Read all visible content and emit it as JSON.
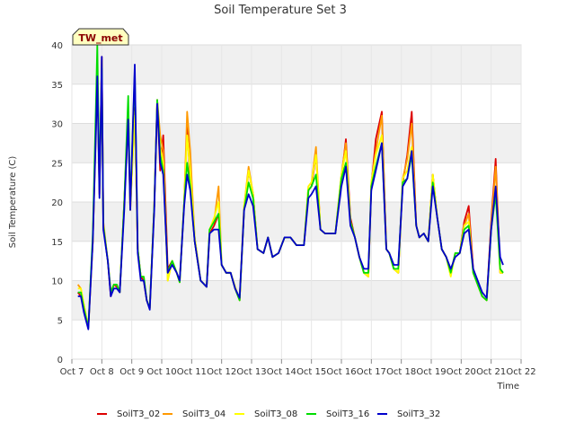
{
  "chart_data": {
    "type": "line",
    "title": "Soil Temperature Set 3",
    "xlabel": "Time",
    "ylabel": "Soil Temperature (C)",
    "badge": "TW_met",
    "ylim": [
      0,
      40
    ],
    "yticks": [
      0,
      5,
      10,
      15,
      20,
      25,
      30,
      35,
      40
    ],
    "xlim": [
      7,
      22
    ],
    "xticks": [
      {
        "v": 7,
        "label": "Oct 7"
      },
      {
        "v": 8,
        "label": "Oct 8"
      },
      {
        "v": 9,
        "label": "Oct 9"
      },
      {
        "v": 10,
        "label": "Oct 10"
      },
      {
        "v": 11,
        "label": "Oct 11"
      },
      {
        "v": 12,
        "label": "Oct 12"
      },
      {
        "v": 13,
        "label": "Oct 13"
      },
      {
        "v": 14,
        "label": "Oct 14"
      },
      {
        "v": 15,
        "label": "Oct 15"
      },
      {
        "v": 16,
        "label": "Oct 16"
      },
      {
        "v": 17,
        "label": "Oct 17"
      },
      {
        "v": 18,
        "label": "Oct 18"
      },
      {
        "v": 19,
        "label": "Oct 19"
      },
      {
        "v": 20,
        "label": "Oct 20"
      },
      {
        "v": 21,
        "label": "Oct 21"
      },
      {
        "v": 22,
        "label": "Oct 22"
      }
    ],
    "grid": true,
    "legend_position": "bottom",
    "x": [
      7.2,
      7.3,
      7.4,
      7.55,
      7.7,
      7.8,
      7.85,
      7.92,
      8.0,
      8.05,
      8.2,
      8.3,
      8.4,
      8.5,
      8.6,
      8.75,
      8.88,
      8.95,
      9.1,
      9.2,
      9.3,
      9.4,
      9.5,
      9.6,
      9.75,
      9.85,
      9.95,
      10.05,
      10.2,
      10.35,
      10.5,
      10.6,
      10.75,
      10.85,
      10.95,
      11.1,
      11.3,
      11.5,
      11.6,
      11.75,
      11.9,
      12.0,
      12.15,
      12.3,
      12.45,
      12.6,
      12.75,
      12.9,
      13.05,
      13.2,
      13.4,
      13.55,
      13.7,
      13.9,
      14.1,
      14.3,
      14.5,
      14.75,
      14.9,
      15.0,
      15.15,
      15.3,
      15.45,
      15.6,
      15.8,
      16.0,
      16.15,
      16.3,
      16.45,
      16.6,
      16.75,
      16.9,
      17.0,
      17.15,
      17.35,
      17.5,
      17.6,
      17.75,
      17.9,
      18.05,
      18.2,
      18.35,
      18.5,
      18.6,
      18.75,
      18.9,
      19.05,
      19.2,
      19.35,
      19.5,
      19.65,
      19.8,
      19.95,
      20.1,
      20.25,
      20.4,
      20.55,
      20.7,
      20.85,
      21.0,
      21.15,
      21.3,
      21.4
    ],
    "series": [
      {
        "name": "SoilT3_02",
        "color": "#dd0000",
        "values": [
          8.5,
          8.0,
          6.5,
          4.0,
          15.0,
          30.0,
          37.0,
          21.0,
          38.5,
          17.0,
          12.5,
          8.0,
          9.5,
          9.2,
          8.5,
          20.0,
          31.5,
          19.0,
          32.0,
          14.0,
          10.5,
          10.0,
          7.5,
          6.5,
          19.5,
          33.0,
          24.0,
          28.5,
          11.5,
          12.5,
          11.0,
          10.0,
          20.0,
          29.5,
          23.0,
          15.0,
          10.0,
          9.2,
          16.0,
          17.0,
          18.5,
          12.0,
          11.0,
          11.0,
          9.0,
          7.5,
          19.0,
          24.0,
          21.0,
          14.0,
          13.5,
          15.5,
          13.0,
          13.5,
          15.5,
          15.5,
          14.5,
          14.5,
          21.5,
          22.0,
          26.0,
          16.5,
          16.0,
          16.0,
          16.0,
          23.0,
          28.0,
          18.0,
          15.5,
          13.0,
          11.0,
          10.5,
          22.0,
          28.0,
          31.5,
          14.0,
          13.5,
          11.5,
          11.0,
          22.5,
          26.0,
          31.5,
          17.0,
          15.5,
          16.0,
          15.0,
          23.5,
          18.0,
          14.0,
          13.0,
          11.0,
          13.5,
          13.5,
          17.5,
          19.5,
          11.5,
          9.5,
          8.0,
          7.5,
          17.5,
          25.5,
          11.0,
          11.0
        ]
      },
      {
        "name": "SoilT3_04",
        "color": "#ff9900",
        "values": [
          9.5,
          9.0,
          7.0,
          4.0,
          15.0,
          29.0,
          36.5,
          22.0,
          38.0,
          17.5,
          12.5,
          8.5,
          9.5,
          9.5,
          8.5,
          20.0,
          31.0,
          19.5,
          31.5,
          14.0,
          10.5,
          10.5,
          7.5,
          6.5,
          19.5,
          33.0,
          28.5,
          26.5,
          10.0,
          12.5,
          11.0,
          9.8,
          20.0,
          31.5,
          26.5,
          15.5,
          10.0,
          9.2,
          16.5,
          17.5,
          22.0,
          12.0,
          11.0,
          11.0,
          9.2,
          7.5,
          19.5,
          24.5,
          21.0,
          14.0,
          13.5,
          15.5,
          13.0,
          13.5,
          15.5,
          15.5,
          14.5,
          14.5,
          22.0,
          22.5,
          27.0,
          16.5,
          16.0,
          16.0,
          16.0,
          23.5,
          27.5,
          17.5,
          15.5,
          13.0,
          11.0,
          10.5,
          22.5,
          26.5,
          31.0,
          14.0,
          13.5,
          11.5,
          11.0,
          23.0,
          25.5,
          30.0,
          17.0,
          15.5,
          16.0,
          15.0,
          23.5,
          18.0,
          14.0,
          13.0,
          10.8,
          13.5,
          13.5,
          17.0,
          18.5,
          11.0,
          9.5,
          8.0,
          7.5,
          17.0,
          24.5,
          11.5,
          11.0
        ]
      },
      {
        "name": "SoilT3_08",
        "color": "#ffff00",
        "values": [
          9.0,
          9.0,
          7.0,
          4.0,
          15.0,
          30.0,
          36.0,
          22.0,
          38.0,
          17.0,
          12.5,
          8.5,
          9.5,
          9.5,
          8.5,
          20.0,
          30.5,
          19.0,
          31.0,
          14.0,
          10.5,
          10.5,
          7.5,
          6.5,
          19.5,
          32.0,
          27.0,
          25.0,
          10.0,
          12.5,
          11.0,
          9.8,
          20.0,
          28.5,
          24.0,
          15.5,
          10.0,
          9.2,
          16.5,
          18.0,
          20.0,
          12.0,
          11.0,
          11.0,
          9.2,
          7.5,
          19.5,
          24.0,
          21.0,
          14.0,
          13.5,
          15.5,
          13.0,
          13.5,
          15.5,
          15.5,
          14.5,
          14.5,
          22.0,
          22.5,
          26.0,
          16.5,
          16.0,
          16.0,
          16.0,
          23.5,
          26.5,
          17.5,
          15.5,
          13.0,
          11.0,
          10.5,
          22.5,
          26.0,
          28.5,
          14.0,
          13.5,
          11.5,
          11.0,
          23.0,
          24.0,
          27.0,
          17.0,
          15.5,
          16.0,
          15.0,
          23.5,
          18.0,
          14.0,
          13.0,
          10.5,
          13.5,
          13.5,
          17.0,
          17.5,
          11.0,
          9.5,
          8.0,
          7.5,
          16.5,
          22.0,
          11.0,
          11.0
        ]
      },
      {
        "name": "SoilT3_16",
        "color": "#00dd00",
        "values": [
          8.5,
          8.5,
          6.5,
          4.0,
          16.0,
          32.0,
          40.0,
          22.0,
          37.0,
          17.0,
          12.5,
          8.5,
          9.5,
          9.5,
          8.5,
          20.0,
          33.5,
          19.5,
          36.5,
          14.0,
          10.5,
          10.5,
          7.5,
          6.5,
          19.5,
          33.0,
          26.0,
          24.0,
          11.0,
          12.5,
          11.0,
          9.8,
          20.0,
          25.0,
          22.0,
          15.0,
          10.0,
          9.2,
          16.5,
          17.5,
          18.5,
          12.0,
          11.0,
          11.0,
          9.0,
          7.5,
          19.0,
          22.5,
          20.5,
          14.0,
          13.5,
          15.5,
          13.0,
          13.5,
          15.5,
          15.5,
          14.5,
          14.5,
          21.5,
          22.0,
          23.5,
          16.5,
          16.0,
          16.0,
          16.0,
          23.0,
          25.0,
          17.5,
          15.5,
          13.0,
          11.0,
          11.0,
          22.0,
          24.5,
          27.5,
          14.0,
          13.5,
          11.5,
          11.5,
          22.5,
          23.0,
          26.0,
          17.0,
          15.5,
          16.0,
          15.0,
          22.5,
          18.0,
          14.0,
          13.0,
          11.0,
          13.5,
          13.5,
          16.5,
          17.0,
          11.0,
          9.5,
          8.0,
          7.5,
          16.5,
          21.0,
          11.5,
          11.0
        ]
      },
      {
        "name": "SoilT3_32",
        "color": "#0000cc",
        "values": [
          8.0,
          8.0,
          6.0,
          3.8,
          15.0,
          28.5,
          36.0,
          20.5,
          38.5,
          16.5,
          12.5,
          8.0,
          9.0,
          9.0,
          8.5,
          19.0,
          30.5,
          19.0,
          37.5,
          13.5,
          10.0,
          10.0,
          7.5,
          6.3,
          19.0,
          32.5,
          25.0,
          23.5,
          11.0,
          12.0,
          11.0,
          10.0,
          19.5,
          23.5,
          21.5,
          15.0,
          10.0,
          9.2,
          16.0,
          16.5,
          16.5,
          12.0,
          11.0,
          11.0,
          9.0,
          7.8,
          19.0,
          21.0,
          19.5,
          14.0,
          13.5,
          15.5,
          13.0,
          13.5,
          15.5,
          15.5,
          14.5,
          14.5,
          20.5,
          21.0,
          22.0,
          16.5,
          16.0,
          16.0,
          16.0,
          22.0,
          24.5,
          17.0,
          15.5,
          13.0,
          11.5,
          11.5,
          21.5,
          24.0,
          27.5,
          14.0,
          13.5,
          12.0,
          12.0,
          22.0,
          23.0,
          26.5,
          17.0,
          15.5,
          16.0,
          15.0,
          22.0,
          18.0,
          14.0,
          13.0,
          11.5,
          13.0,
          13.5,
          16.0,
          16.5,
          11.5,
          10.0,
          8.5,
          7.8,
          16.5,
          22.0,
          13.0,
          12.0
        ]
      }
    ]
  }
}
